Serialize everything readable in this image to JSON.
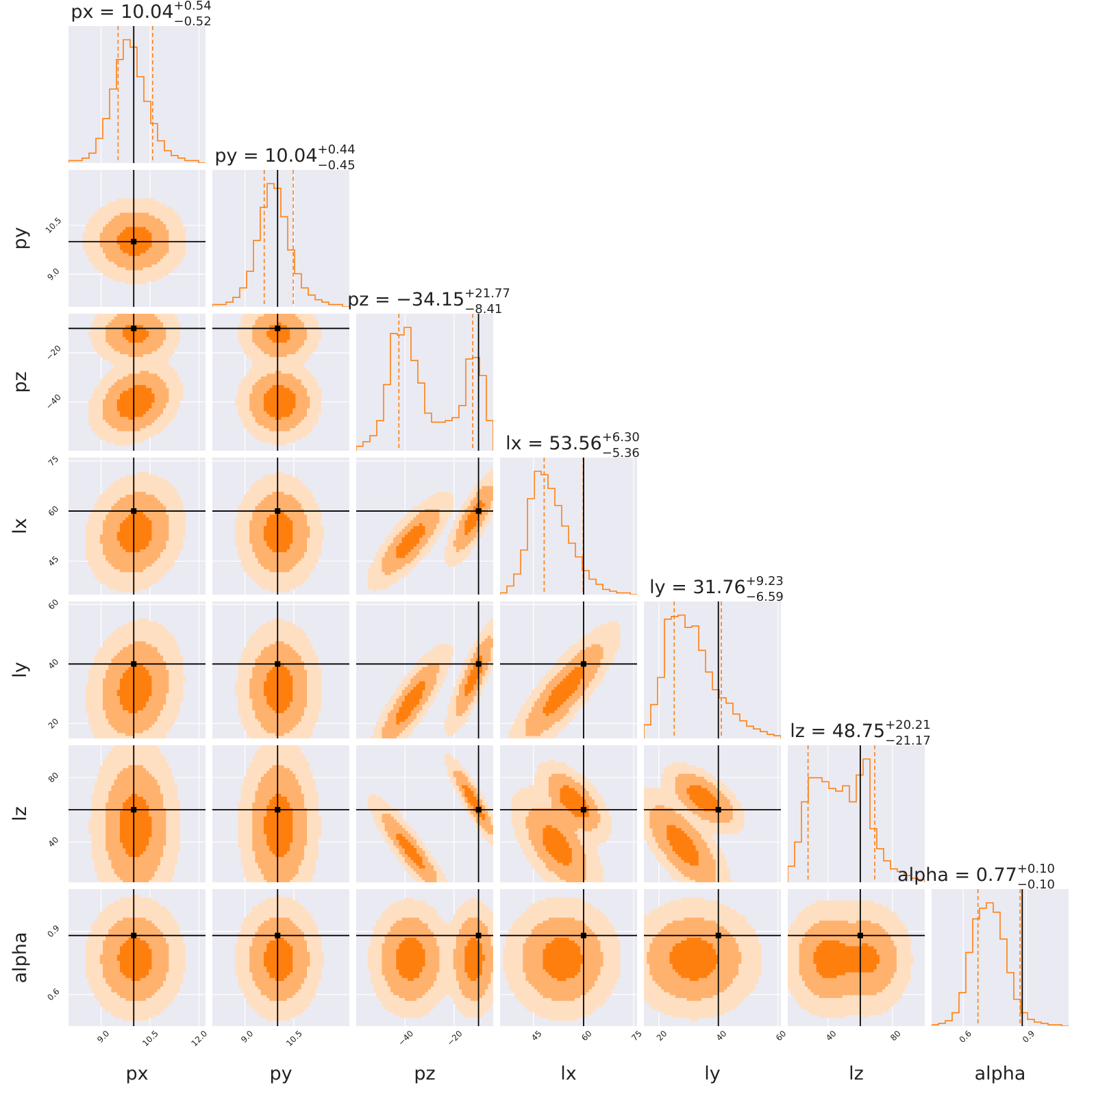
{
  "colors": {
    "panel_bg": "#eaeaf2",
    "grid": "#ffffff",
    "series": "#ff7f0e",
    "fill_1sigma": "#ff7f0e",
    "fill_2sigma": "#ffb26e",
    "fill_3sigma": "#ffdfc1",
    "truth": "#000000",
    "text": "#222222"
  },
  "chart_data": {
    "type": "corner",
    "parameters": [
      {
        "name": "px",
        "label": "px",
        "range": [
          8.0,
          12.2
        ],
        "ticks": [
          9.0,
          10.5,
          12.0
        ],
        "tick_labels": [
          "9.0",
          "10.5",
          "12.0"
        ],
        "truth": 10.0,
        "median": 10.04,
        "plus": 0.54,
        "minus": 0.52,
        "title": {
          "prefix": "px = 10.04",
          "sup": "+0.54",
          "sub": "−0.52"
        },
        "show_as_row": false
      },
      {
        "name": "py",
        "label": "py",
        "range": [
          8.0,
          12.2
        ],
        "ticks": [
          9.0,
          10.5
        ],
        "tick_labels": [
          "9.0",
          "10.5"
        ],
        "truth": 10.0,
        "median": 10.04,
        "plus": 0.44,
        "minus": 0.45,
        "title": {
          "prefix": "py = 10.04",
          "sup": "+0.44",
          "sub": "−0.45"
        },
        "show_as_row": true
      },
      {
        "name": "pz",
        "label": "pz",
        "range": [
          -60.0,
          -4.0
        ],
        "ticks": [
          -40,
          -20
        ],
        "tick_labels": [
          "−40",
          "−20"
        ],
        "truth": -10.0,
        "median": -34.15,
        "plus": 21.77,
        "minus": 8.41,
        "title": {
          "prefix": "pz = −34.15",
          "sup": "+21.77",
          "sub": "−8.41"
        },
        "show_as_row": true
      },
      {
        "name": "lx",
        "label": "lx",
        "range": [
          35.0,
          76.0
        ],
        "ticks": [
          45,
          60,
          75
        ],
        "tick_labels": [
          "45",
          "60",
          "75"
        ],
        "truth": 60.0,
        "median": 53.56,
        "plus": 6.3,
        "minus": 5.36,
        "title": {
          "prefix": "lx = 53.56",
          "sup": "+6.30",
          "sub": "−5.36"
        },
        "show_as_row": true
      },
      {
        "name": "ly",
        "label": "ly",
        "range": [
          15.0,
          61.0
        ],
        "ticks": [
          20,
          40,
          60
        ],
        "tick_labels": [
          "20",
          "40",
          "60"
        ],
        "truth": 40.0,
        "median": 31.76,
        "plus": 9.23,
        "minus": 6.59,
        "title": {
          "prefix": "ly = 31.76",
          "sup": "+9.23",
          "sub": "−6.59"
        },
        "show_as_row": true
      },
      {
        "name": "lz",
        "label": "lz",
        "range": [
          15.0,
          100.0
        ],
        "ticks": [
          40,
          80
        ],
        "tick_labels": [
          "40",
          "80"
        ],
        "truth": 60.0,
        "median": 48.75,
        "plus": 20.21,
        "minus": 21.17,
        "title": {
          "prefix": "lz = 48.75",
          "sup": "+20.21",
          "sub": "−21.17"
        },
        "show_as_row": true
      },
      {
        "name": "alpha",
        "label": "alpha",
        "range": [
          0.45,
          1.1
        ],
        "ticks": [
          0.6,
          0.9
        ],
        "tick_labels": [
          "0.6",
          "0.9"
        ],
        "truth": 0.88,
        "median": 0.77,
        "plus": 0.1,
        "minus": 0.1,
        "title": {
          "prefix": "alpha = 0.77",
          "sup": "+0.10",
          "sub": "−0.10"
        },
        "show_as_row": true
      }
    ],
    "histograms": {
      "px": {
        "n": 20,
        "counts": [
          1,
          1,
          2,
          4,
          10,
          18,
          30,
          42,
          50,
          47,
          35,
          25,
          16,
          9,
          5,
          3,
          2,
          1,
          1,
          0
        ]
      },
      "py": {
        "n": 20,
        "counts": [
          1,
          1,
          2,
          4,
          8,
          15,
          28,
          42,
          52,
          50,
          38,
          24,
          14,
          8,
          5,
          3,
          2,
          1,
          1,
          0
        ]
      },
      "pz": {
        "n": 20,
        "counts": [
          3,
          6,
          10,
          20,
          44,
          78,
          77,
          82,
          60,
          45,
          25,
          19,
          19,
          20,
          22,
          30,
          61,
          62,
          50,
          20
        ]
      },
      "lx": {
        "n": 20,
        "counts": [
          1,
          5,
          12,
          26,
          56,
          72,
          70,
          62,
          52,
          40,
          30,
          22,
          14,
          9,
          6,
          3,
          2,
          1,
          1,
          0
        ]
      },
      "ly": {
        "n": 20,
        "counts": [
          10,
          25,
          45,
          88,
          90,
          91,
          82,
          83,
          65,
          49,
          36,
          30,
          26,
          18,
          13,
          9,
          7,
          5,
          3,
          2
        ]
      },
      "lz": {
        "n": 20,
        "counts": [
          12,
          30,
          60,
          78,
          78,
          75,
          70,
          68,
          72,
          60,
          80,
          92,
          40,
          25,
          16,
          10,
          8,
          5,
          3,
          2
        ]
      },
      "alpha": {
        "n": 20,
        "counts": [
          1,
          2,
          4,
          10,
          25,
          55,
          80,
          88,
          92,
          85,
          65,
          40,
          20,
          10,
          5,
          3,
          2,
          1,
          1,
          0
        ]
      }
    },
    "contours": [
      {
        "x": "px",
        "y": "py",
        "modes": [
          {
            "cx": 10.04,
            "cy": 10.04,
            "sx": 0.53,
            "sy": 0.44,
            "rho": 0.0,
            "w": 1
          }
        ]
      },
      {
        "x": "px",
        "y": "pz",
        "modes": [
          {
            "cx": 10.04,
            "cy": -40.0,
            "sx": 0.5,
            "sy": 6.0,
            "rho": 0.25,
            "w": 0.62
          },
          {
            "cx": 10.04,
            "cy": -12.0,
            "sx": 0.5,
            "sy": 5.0,
            "rho": 0.0,
            "w": 0.38
          }
        ]
      },
      {
        "x": "py",
        "y": "pz",
        "modes": [
          {
            "cx": 10.04,
            "cy": -40.0,
            "sx": 0.45,
            "sy": 6.0,
            "rho": 0.0,
            "w": 0.62
          },
          {
            "cx": 10.04,
            "cy": -12.0,
            "sx": 0.45,
            "sy": 5.0,
            "rho": 0.0,
            "w": 0.38
          }
        ]
      },
      {
        "x": "px",
        "y": "lx",
        "modes": [
          {
            "cx": 10.04,
            "cy": 53.56,
            "sx": 0.52,
            "sy": 6.0,
            "rho": 0.15,
            "w": 1
          }
        ]
      },
      {
        "x": "py",
        "y": "lx",
        "modes": [
          {
            "cx": 10.04,
            "cy": 53.56,
            "sx": 0.45,
            "sy": 6.0,
            "rho": 0.0,
            "w": 1
          }
        ]
      },
      {
        "x": "pz",
        "y": "lx",
        "modes": [
          {
            "cx": -38.0,
            "cy": 51.0,
            "sx": 6.0,
            "sy": 5.0,
            "rho": 0.8,
            "w": 0.6
          },
          {
            "cx": -12.0,
            "cy": 58.0,
            "sx": 4.0,
            "sy": 5.0,
            "rho": 0.8,
            "w": 0.4
          }
        ]
      },
      {
        "x": "px",
        "y": "ly",
        "modes": [
          {
            "cx": 10.04,
            "cy": 31.76,
            "sx": 0.52,
            "sy": 8.0,
            "rho": 0.15,
            "w": 1
          }
        ]
      },
      {
        "x": "py",
        "y": "ly",
        "modes": [
          {
            "cx": 10.04,
            "cy": 31.76,
            "sx": 0.45,
            "sy": 8.0,
            "rho": 0.0,
            "w": 1
          }
        ]
      },
      {
        "x": "pz",
        "y": "ly",
        "modes": [
          {
            "cx": -38.0,
            "cy": 27.0,
            "sx": 6.0,
            "sy": 7.0,
            "rho": 0.85,
            "w": 0.6
          },
          {
            "cx": -12.0,
            "cy": 36.0,
            "sx": 4.0,
            "sy": 7.0,
            "rho": 0.85,
            "w": 0.4
          }
        ]
      },
      {
        "x": "lx",
        "y": "ly",
        "modes": [
          {
            "cx": 54.0,
            "cy": 31.0,
            "sx": 6.0,
            "sy": 8.0,
            "rho": 0.85,
            "w": 1
          }
        ]
      },
      {
        "x": "px",
        "y": "lz",
        "modes": [
          {
            "cx": 10.04,
            "cy": 50.0,
            "sx": 0.5,
            "sy": 20.0,
            "rho": 0.0,
            "w": 1
          }
        ]
      },
      {
        "x": "py",
        "y": "lz",
        "modes": [
          {
            "cx": 10.04,
            "cy": 50.0,
            "sx": 0.45,
            "sy": 20.0,
            "rho": 0.0,
            "w": 1
          }
        ]
      },
      {
        "x": "pz",
        "y": "lz",
        "modes": [
          {
            "cx": -38.0,
            "cy": 35.0,
            "sx": 6.0,
            "sy": 12.0,
            "rho": -0.9,
            "w": 0.6
          },
          {
            "cx": -12.0,
            "cy": 65.0,
            "sx": 4.0,
            "sy": 10.0,
            "rho": -0.9,
            "w": 0.4
          }
        ]
      },
      {
        "x": "lx",
        "y": "lz",
        "modes": [
          {
            "cx": 52.0,
            "cy": 38.0,
            "sx": 5.0,
            "sy": 13.0,
            "rho": -0.6,
            "w": 0.6
          },
          {
            "cx": 57.0,
            "cy": 65.0,
            "sx": 4.0,
            "sy": 9.0,
            "rho": -0.6,
            "w": 0.4
          }
        ]
      },
      {
        "x": "ly",
        "y": "lz",
        "modes": [
          {
            "cx": 28.0,
            "cy": 38.0,
            "sx": 6.0,
            "sy": 13.0,
            "rho": -0.7,
            "w": 0.6
          },
          {
            "cx": 35.0,
            "cy": 67.0,
            "sx": 5.0,
            "sy": 8.0,
            "rho": -0.6,
            "w": 0.4
          }
        ]
      },
      {
        "x": "px",
        "y": "alpha",
        "modes": [
          {
            "cx": 10.04,
            "cy": 0.77,
            "sx": 0.52,
            "sy": 0.1,
            "rho": 0.0,
            "w": 1
          }
        ]
      },
      {
        "x": "py",
        "y": "alpha",
        "modes": [
          {
            "cx": 10.04,
            "cy": 0.77,
            "sx": 0.45,
            "sy": 0.1,
            "rho": 0.0,
            "w": 1
          }
        ]
      },
      {
        "x": "pz",
        "y": "alpha",
        "modes": [
          {
            "cx": -38.0,
            "cy": 0.77,
            "sx": 6.0,
            "sy": 0.1,
            "rho": 0.0,
            "w": 0.6
          },
          {
            "cx": -12.0,
            "cy": 0.77,
            "sx": 4.0,
            "sy": 0.1,
            "rho": 0.0,
            "w": 0.4
          }
        ]
      },
      {
        "x": "lx",
        "y": "alpha",
        "modes": [
          {
            "cx": 53.56,
            "cy": 0.77,
            "sx": 6.0,
            "sy": 0.1,
            "rho": 0.0,
            "w": 1
          }
        ]
      },
      {
        "x": "ly",
        "y": "alpha",
        "modes": [
          {
            "cx": 31.76,
            "cy": 0.77,
            "sx": 8.0,
            "sy": 0.1,
            "rho": 0.0,
            "w": 1
          }
        ]
      },
      {
        "x": "lz",
        "y": "alpha",
        "modes": [
          {
            "cx": 40.0,
            "cy": 0.77,
            "sx": 10.0,
            "sy": 0.1,
            "rho": 0.0,
            "w": 0.55
          },
          {
            "cx": 65.0,
            "cy": 0.77,
            "sx": 10.0,
            "sy": 0.1,
            "rho": 0.0,
            "w": 0.45
          }
        ]
      }
    ],
    "contour_levels": [
      "1-sigma",
      "2-sigma",
      "3-sigma"
    ],
    "grid": true,
    "legend": "none"
  }
}
